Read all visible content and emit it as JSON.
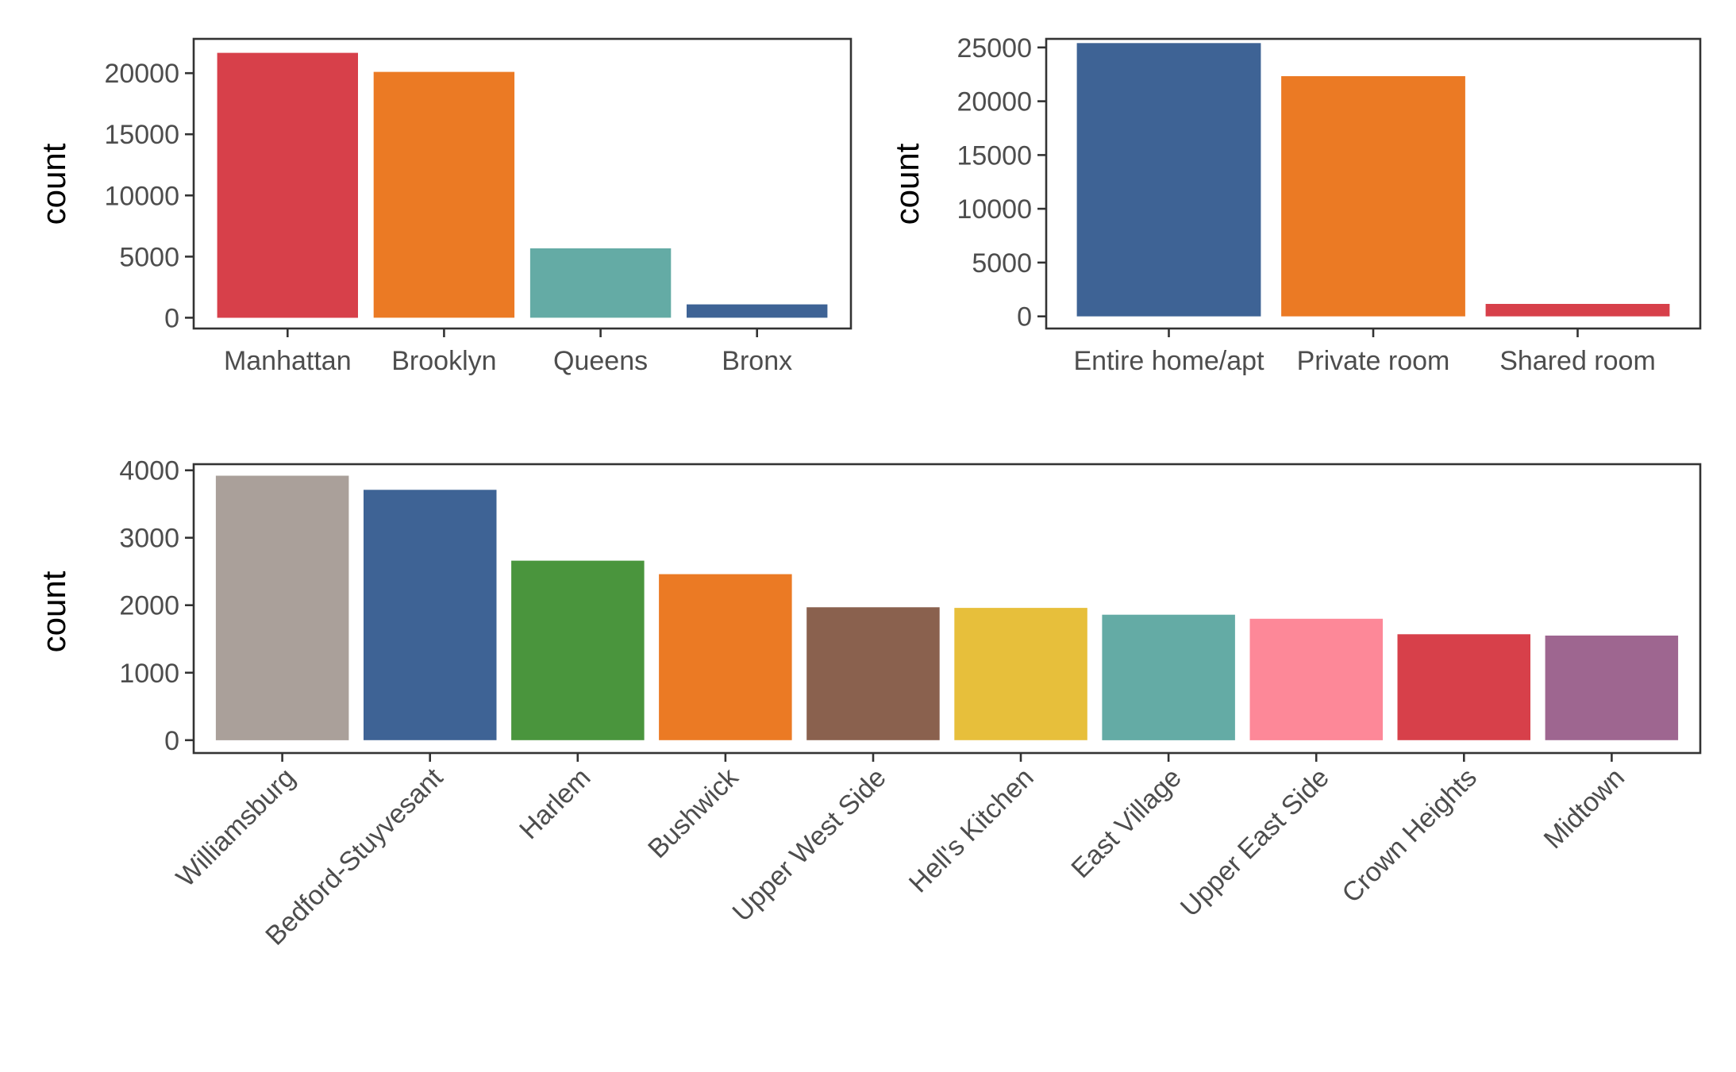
{
  "chart_data": [
    {
      "type": "bar",
      "title": "",
      "xlabel": "",
      "ylabel": "count",
      "categories": [
        "Manhattan",
        "Brooklyn",
        "Queens",
        "Bronx"
      ],
      "values": [
        21660,
        20100,
        5670,
        1090
      ],
      "colors": [
        "#D7404A",
        "#EB7A24",
        "#64ABA5",
        "#3E6395"
      ],
      "ylim": [
        -880,
        22800
      ],
      "yticks": [
        0,
        5000,
        10000,
        15000,
        20000
      ],
      "ytick_labels": [
        "0",
        "5000",
        "10000",
        "15000",
        "20000"
      ],
      "grid": false,
      "legend": "none"
    },
    {
      "type": "bar",
      "title": "",
      "xlabel": "",
      "ylabel": "count",
      "categories": [
        "Entire home/apt",
        "Private room",
        "Shared room"
      ],
      "values": [
        25410,
        22330,
        1160
      ],
      "colors": [
        "#3E6395",
        "#EB7A24",
        "#D7404A"
      ],
      "ylim": [
        -1130,
        25800
      ],
      "yticks": [
        0,
        5000,
        10000,
        15000,
        20000,
        25000
      ],
      "ytick_labels": [
        "0",
        "5000",
        "10000",
        "15000",
        "20000",
        "25000"
      ],
      "grid": false,
      "legend": "none"
    },
    {
      "type": "bar",
      "title": "",
      "xlabel": "",
      "ylabel": "count",
      "categories": [
        "Williamsburg",
        "Bedford-Stuyvesant",
        "Harlem",
        "Bushwick",
        "Upper West Side",
        "Hell's Kitchen",
        "East Village",
        "Upper East Side",
        "Crown Heights",
        "Midtown"
      ],
      "values": [
        3920,
        3710,
        2660,
        2460,
        1970,
        1960,
        1860,
        1800,
        1570,
        1550
      ],
      "colors": [
        "#AAA09A",
        "#3E6395",
        "#4A953D",
        "#EB7A24",
        "#8A614E",
        "#E7BF3B",
        "#64ABA5",
        "#FD8898",
        "#D7404A",
        "#9E6690"
      ],
      "ylim": [
        -190,
        4090
      ],
      "yticks": [
        0,
        1000,
        2000,
        3000,
        4000
      ],
      "ytick_labels": [
        "0",
        "1000",
        "2000",
        "3000",
        "4000"
      ],
      "tick_label_rotation": -45,
      "grid": false,
      "legend": "none"
    }
  ]
}
